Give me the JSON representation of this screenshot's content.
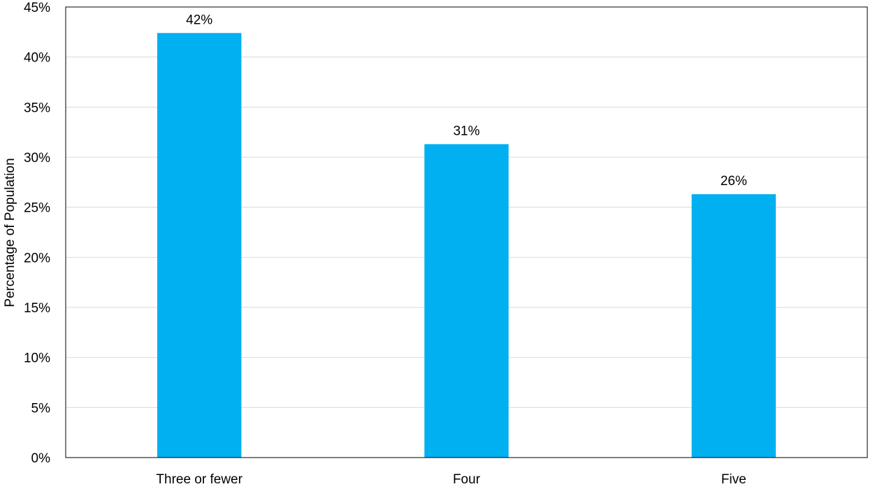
{
  "chart_data": {
    "type": "bar",
    "title": "",
    "xlabel": "",
    "ylabel": "Percentage of Population",
    "categories": [
      "Three or fewer",
      "Four",
      "Five"
    ],
    "values": [
      42.4,
      31.3,
      26.3
    ],
    "data_labels": [
      "42%",
      "31%",
      "26%"
    ],
    "ylim": [
      0,
      45
    ],
    "yticks": [
      0,
      5,
      10,
      15,
      20,
      25,
      30,
      35,
      40,
      45
    ],
    "ytick_labels": [
      "0%",
      "5%",
      "10%",
      "15%",
      "20%",
      "25%",
      "30%",
      "35%",
      "40%",
      "45%"
    ],
    "grid": true,
    "legend": "none",
    "colors": {
      "bar": "#00B0F0",
      "grid": "#D9D9D9",
      "axis": "#000000"
    }
  }
}
